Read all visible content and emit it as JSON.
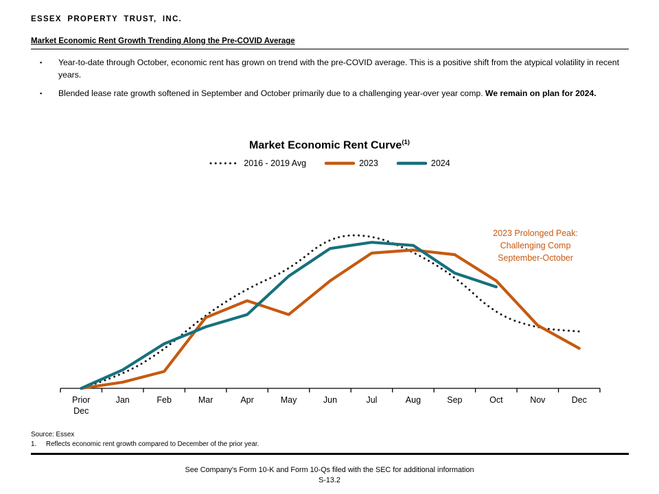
{
  "slide": {
    "company": "ESSEX PROPERTY TRUST, INC.",
    "heading": "Market Economic Rent Growth Trending Along the Pre-COVID Average",
    "bullets": [
      {
        "text": "Year-to-date through October, economic rent has grown on trend with the pre-COVID average. This is a positive shift from the atypical volatility in recent years.",
        "bold": ""
      },
      {
        "text": "Blended lease rate growth softened in September and October primarily due to a challenging year-over year comp.",
        "bold": "We remain on plan for 2024."
      }
    ],
    "source": "Source: Essex",
    "footnotes": [
      {
        "num": "1.",
        "text": "Reflects economic rent growth compared to December of the prior year."
      }
    ],
    "footer_note": "See Company's Form 10-K and Form 10-Qs filed with the SEC for additional information",
    "page_number": "S-13.2"
  },
  "chart_data": {
    "type": "line",
    "title": "Market Economic Rent Curve",
    "title_superscript": "(1)",
    "categories": [
      "Prior Dec",
      "Jan",
      "Feb",
      "Mar",
      "Apr",
      "May",
      "Jun",
      "Jul",
      "Aug",
      "Sep",
      "Oct",
      "Nov",
      "Dec"
    ],
    "xlabel": "",
    "ylabel": "",
    "y_axis_visible": false,
    "y_values_note": "no y-axis labels shown; values are relative index estimates scaled so the pre-COVID average peak (Jul) = 100",
    "ylim": [
      0,
      105
    ],
    "legend_position": "top",
    "grid": false,
    "series": [
      {
        "name": "2016 - 2019 Avg",
        "style": "dotted",
        "color": "#1A1A1A",
        "values": [
          0,
          8.5,
          25,
          48,
          65,
          77,
          99,
          100,
          89,
          73,
          48,
          39,
          37
        ]
      },
      {
        "name": "2023",
        "style": "solid",
        "color": "#C55A11",
        "values": [
          0,
          4,
          11,
          46,
          57,
          48,
          70,
          88,
          90,
          87,
          70,
          41,
          26
        ]
      },
      {
        "name": "2024",
        "style": "solid",
        "color": "#17707E",
        "values": [
          0,
          12,
          29,
          40,
          48,
          73,
          91,
          95,
          93,
          75,
          66,
          null,
          null
        ]
      }
    ],
    "annotation": {
      "lines": [
        "2023 Prolonged Peak:",
        "Challenging Comp",
        "September-October"
      ],
      "color": "#C55A11"
    }
  }
}
